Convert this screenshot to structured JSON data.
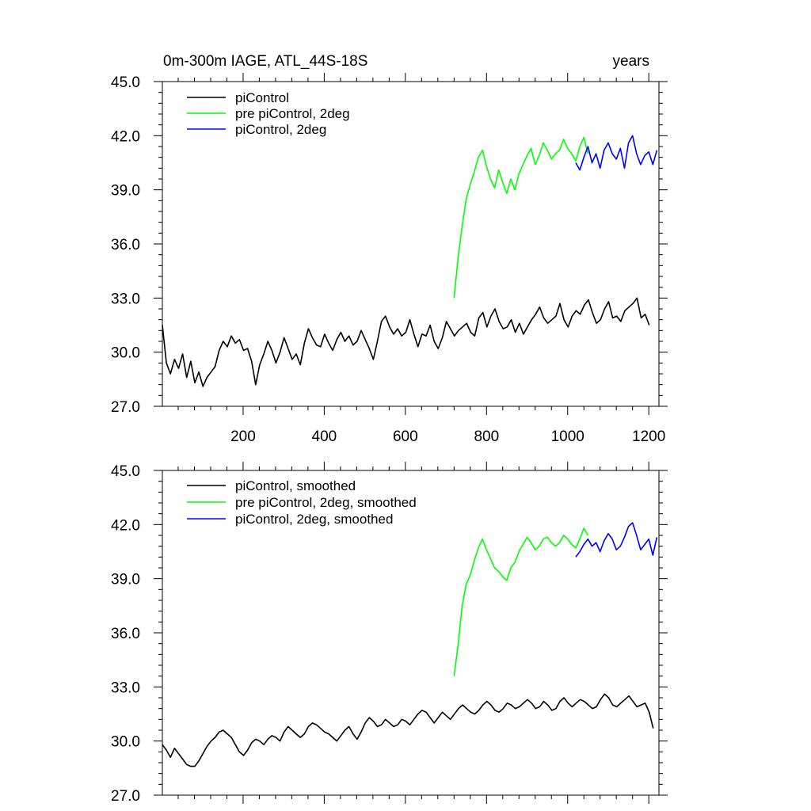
{
  "colors": {
    "black": "#000000",
    "green": "#00ff00",
    "blue": "#0000ff"
  },
  "chart_data": [
    {
      "type": "line",
      "title_left": "0m-300m IAGE, ATL_44S-18S",
      "title_right": "years",
      "xlabel": "",
      "ylabel": "",
      "xlim": [
        1,
        1225
      ],
      "ylim": [
        27.0,
        45.0
      ],
      "x_ticks": [
        200,
        400,
        600,
        800,
        1000,
        1200
      ],
      "x_tick_labels": [
        "200",
        "400",
        "600",
        "800",
        "1000",
        "1200"
      ],
      "y_ticks": [
        27.0,
        30.0,
        33.0,
        36.0,
        39.0,
        42.0,
        45.0
      ],
      "y_tick_labels": [
        "27.0",
        "30.0",
        "33.0",
        "36.0",
        "39.0",
        "42.0",
        "45.0"
      ],
      "legend_position": "top-left",
      "series": [
        {
          "name": "piControl",
          "color": "#000000",
          "x_start": 1,
          "x_step": 10,
          "values": [
            31.5,
            29.4,
            28.8,
            29.6,
            29.1,
            29.9,
            28.6,
            29.5,
            28.3,
            28.9,
            28.1,
            28.6,
            28.9,
            29.2,
            30.1,
            30.6,
            30.3,
            30.9,
            30.5,
            30.7,
            30.1,
            30.2,
            29.5,
            28.2,
            29.3,
            29.9,
            30.6,
            30.1,
            29.4,
            30.0,
            30.8,
            30.2,
            29.6,
            29.9,
            29.3,
            30.5,
            31.3,
            30.8,
            30.4,
            30.3,
            31.0,
            30.5,
            30.1,
            30.7,
            31.1,
            30.6,
            30.9,
            30.4,
            30.6,
            31.2,
            30.7,
            30.2,
            29.6,
            30.6,
            31.7,
            32.0,
            31.4,
            31.0,
            31.3,
            30.9,
            31.1,
            31.8,
            31.0,
            30.3,
            31.0,
            30.9,
            31.5,
            30.6,
            30.2,
            30.8,
            31.7,
            31.3,
            30.9,
            31.2,
            31.4,
            31.6,
            31.1,
            30.9,
            31.9,
            32.2,
            31.4,
            32.0,
            32.4,
            31.7,
            31.3,
            31.4,
            31.8,
            31.1,
            31.6,
            31.0,
            31.4,
            31.8,
            32.1,
            32.5,
            31.9,
            31.6,
            31.8,
            32.0,
            32.7,
            31.8,
            31.4,
            32.0,
            32.3,
            32.1,
            32.6,
            32.9,
            32.2,
            31.6,
            31.8,
            32.4,
            32.8,
            31.9,
            32.0,
            31.7,
            32.3,
            32.5,
            32.7,
            33.0,
            31.9,
            32.1,
            31.5
          ]
        },
        {
          "name": "pre piControl, 2deg",
          "color": "#00ff00",
          "x_start": 720,
          "x_step": 10,
          "values": [
            33.0,
            35.2,
            37.0,
            38.5,
            39.3,
            40.0,
            40.8,
            41.2,
            40.3,
            39.6,
            39.1,
            40.1,
            39.4,
            38.8,
            39.6,
            39.0,
            39.9,
            40.4,
            40.9,
            41.3,
            40.4,
            40.9,
            41.6,
            41.2,
            40.7,
            41.0,
            41.2,
            41.8,
            41.3,
            41.0,
            40.6,
            41.4,
            41.9,
            41.0
          ]
        },
        {
          "name": "piControl, 2deg",
          "color": "#0000ff",
          "x_start": 1020,
          "x_step": 10,
          "values": [
            40.5,
            40.1,
            40.8,
            41.4,
            40.5,
            41.0,
            40.2,
            41.2,
            41.6,
            41.0,
            40.7,
            41.3,
            40.2,
            41.6,
            42.0,
            41.0,
            40.4,
            40.9,
            41.1,
            40.4,
            41.2
          ]
        }
      ]
    },
    {
      "type": "line",
      "xlabel": "",
      "ylabel": "",
      "xlim": [
        1,
        1225
      ],
      "ylim": [
        27.0,
        45.0
      ],
      "y_ticks": [
        27.0,
        30.0,
        33.0,
        36.0,
        39.0,
        42.0,
        45.0
      ],
      "y_tick_labels": [
        "27.0",
        "30.0",
        "33.0",
        "36.0",
        "39.0",
        "42.0",
        "45.0"
      ],
      "legend_position": "top-left",
      "series": [
        {
          "name": "piControl, smoothed",
          "color": "#000000",
          "x_start": 1,
          "x_step": 10,
          "values": [
            29.8,
            29.5,
            29.1,
            29.6,
            29.3,
            29.0,
            28.7,
            28.6,
            28.6,
            28.9,
            29.3,
            29.7,
            30.0,
            30.2,
            30.5,
            30.6,
            30.4,
            30.2,
            29.8,
            29.4,
            29.2,
            29.5,
            29.9,
            30.1,
            30.0,
            29.8,
            30.1,
            30.3,
            30.2,
            30.0,
            30.5,
            30.8,
            30.6,
            30.4,
            30.2,
            30.4,
            30.8,
            31.0,
            30.9,
            30.7,
            30.5,
            30.4,
            30.2,
            30.0,
            30.3,
            30.6,
            30.8,
            30.4,
            30.1,
            30.5,
            31.0,
            31.3,
            31.1,
            30.8,
            30.9,
            31.2,
            31.0,
            30.8,
            30.9,
            31.2,
            31.1,
            30.9,
            31.2,
            31.5,
            31.7,
            31.6,
            31.3,
            31.0,
            31.3,
            31.6,
            31.4,
            31.2,
            31.5,
            31.8,
            32.0,
            31.8,
            31.6,
            31.5,
            31.7,
            32.0,
            32.2,
            32.0,
            31.7,
            31.6,
            31.8,
            32.1,
            32.0,
            31.8,
            31.9,
            32.1,
            32.3,
            32.1,
            31.8,
            31.9,
            32.2,
            32.0,
            31.7,
            31.8,
            32.2,
            32.4,
            32.1,
            31.9,
            32.1,
            32.3,
            32.2,
            32.0,
            31.8,
            31.9,
            32.3,
            32.6,
            32.4,
            32.0,
            31.9,
            32.1,
            32.3,
            32.5,
            32.2,
            31.9,
            32.0,
            32.1,
            31.6,
            30.7
          ]
        },
        {
          "name": "pre piControl, 2deg, smoothed",
          "color": "#00ff00",
          "x_start": 720,
          "x_step": 10,
          "values": [
            33.6,
            35.3,
            37.5,
            38.7,
            39.2,
            40.0,
            40.7,
            41.2,
            40.6,
            40.1,
            39.6,
            39.4,
            39.1,
            38.9,
            39.6,
            39.9,
            40.5,
            40.9,
            41.3,
            41.0,
            40.6,
            40.8,
            41.2,
            41.3,
            41.0,
            40.8,
            41.0,
            41.4,
            41.2,
            40.9,
            40.7,
            41.2,
            41.8,
            41.4
          ]
        },
        {
          "name": "piControl, 2deg, smoothed",
          "color": "#0000ff",
          "x_start": 1020,
          "x_step": 10,
          "values": [
            40.2,
            40.5,
            40.9,
            41.2,
            40.8,
            41.0,
            40.5,
            41.1,
            41.5,
            41.2,
            40.6,
            40.8,
            41.3,
            41.9,
            42.1,
            41.4,
            40.6,
            40.9,
            41.2,
            40.3,
            41.3
          ]
        }
      ]
    }
  ]
}
